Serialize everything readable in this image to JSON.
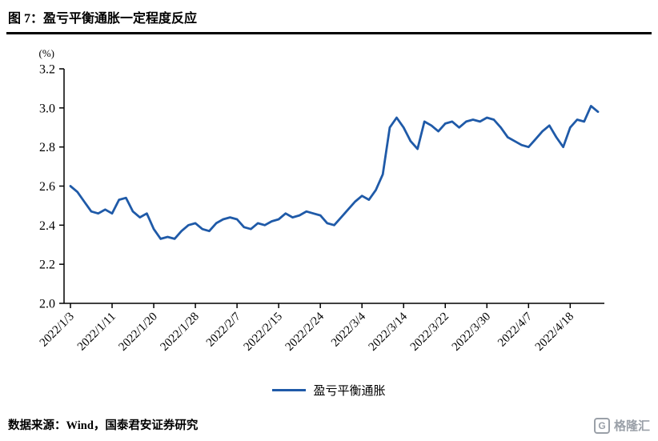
{
  "page": {
    "title": "图 7：盈亏平衡通胀一定程度反应",
    "footer": "数据来源：Wind，国泰君安证券研究",
    "watermark_text": "格隆汇",
    "watermark_icon": "G"
  },
  "colors": {
    "line": "#1F5AA8",
    "axis": "#000000",
    "text": "#000000",
    "watermark": "#9AA0A8"
  },
  "chart_data": {
    "type": "line",
    "title": "盈亏平衡通胀一定程度反应",
    "unit_label": "(%)",
    "xlabel": "",
    "ylabel": "",
    "ylim": [
      2.0,
      3.2
    ],
    "ytick_step": 0.2,
    "ytick_labels": [
      "2.0",
      "2.2",
      "2.4",
      "2.6",
      "2.8",
      "3.0",
      "3.2"
    ],
    "xtick_labels": [
      "2022/1/3",
      "2022/1/11",
      "2022/1/20",
      "2022/1/28",
      "2022/2/7",
      "2022/2/15",
      "2022/2/24",
      "2022/3/4",
      "2022/3/14",
      "2022/3/22",
      "2022/3/30",
      "2022/4/7",
      "2022/4/18"
    ],
    "xtick_indices": [
      0,
      6,
      12,
      18,
      24,
      30,
      36,
      42,
      48,
      54,
      60,
      66,
      72
    ],
    "grid": false,
    "legend_position": "bottom",
    "legend": [
      {
        "name": "盈亏平衡通胀",
        "color": "#1F5AA8"
      }
    ],
    "series": [
      {
        "name": "盈亏平衡通胀",
        "values": [
          2.6,
          2.57,
          2.52,
          2.47,
          2.46,
          2.48,
          2.46,
          2.53,
          2.54,
          2.47,
          2.44,
          2.46,
          2.38,
          2.33,
          2.34,
          2.33,
          2.37,
          2.4,
          2.41,
          2.38,
          2.37,
          2.41,
          2.43,
          2.44,
          2.43,
          2.39,
          2.38,
          2.41,
          2.4,
          2.42,
          2.43,
          2.46,
          2.44,
          2.45,
          2.47,
          2.46,
          2.45,
          2.41,
          2.4,
          2.44,
          2.48,
          2.52,
          2.55,
          2.53,
          2.58,
          2.66,
          2.9,
          2.95,
          2.9,
          2.83,
          2.79,
          2.93,
          2.91,
          2.88,
          2.92,
          2.93,
          2.9,
          2.93,
          2.94,
          2.93,
          2.95,
          2.94,
          2.9,
          2.85,
          2.83,
          2.81,
          2.8,
          2.84,
          2.88,
          2.91,
          2.85,
          2.8,
          2.9,
          2.94,
          2.93,
          3.01,
          2.98
        ]
      }
    ]
  }
}
